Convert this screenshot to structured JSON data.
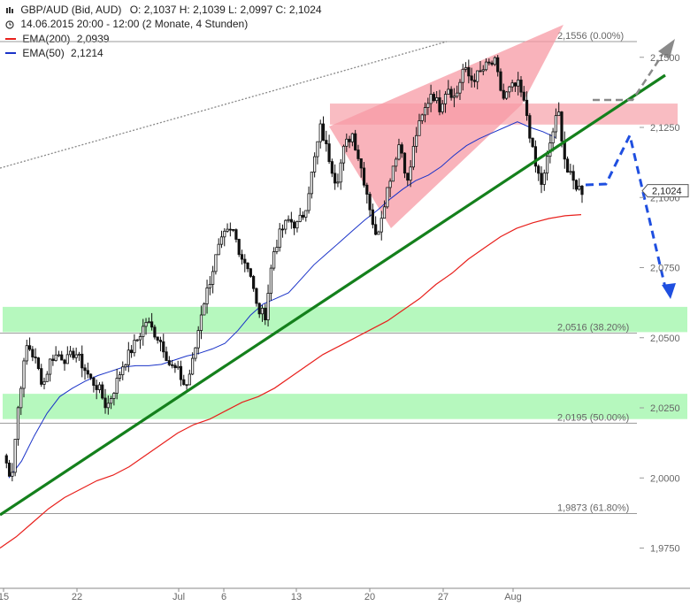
{
  "header": {
    "title": "GBP/AUD (Bid, AUD)",
    "ohlc": "O: 2,1037  H: 2,1039  L: 2,0997  C: 2,1024",
    "period": "14.06.2015 20:00 - 12:00 (2 Monate, 4 Stunden)",
    "ema200_label": "EMA(200)",
    "ema200_value": "2,0939",
    "ema50_label": "EMA(50)",
    "ema50_value": "2,1214"
  },
  "colors": {
    "ema200": "#e8201c",
    "ema50": "#1a33c8",
    "trendline": "#14801c",
    "forecast": "#1f4fe0",
    "forecast_alt": "#8a8a8a",
    "zone_green": "#9ef5a8",
    "zone_red": "#f7a0a8",
    "wedge": "#f79aa4",
    "candle": "#111111"
  },
  "chart_data": {
    "type": "candlestick",
    "y_ticks": [
      {
        "value": 2.15,
        "label": "2,1500"
      },
      {
        "value": 2.125,
        "label": "2,1250"
      },
      {
        "value": 2.1,
        "label": "2,1000"
      },
      {
        "value": 2.075,
        "label": "2,0750"
      },
      {
        "value": 2.05,
        "label": "2,0500"
      },
      {
        "value": 2.025,
        "label": "2,0250"
      },
      {
        "value": 2.0,
        "label": "2,0000"
      },
      {
        "value": 1.975,
        "label": "1,9750"
      }
    ],
    "x_ticks": [
      "15",
      "22",
      "Jul",
      "6",
      "13",
      "20",
      "27",
      "Aug"
    ],
    "fib_levels": [
      {
        "value": 2.1556,
        "label": "2,1556 (0.00%)"
      },
      {
        "value": 2.0516,
        "label": "2,0516 (38.20%)"
      },
      {
        "value": 2.0195,
        "label": "2,0195 (50.00%)"
      },
      {
        "value": 1.9873,
        "label": "1,9873 (61.80%)"
      }
    ],
    "current_price": {
      "value": 2.1024,
      "label": "2,1024"
    },
    "support_zones": [
      {
        "low": 2.052,
        "high": 2.061
      },
      {
        "low": 2.021,
        "high": 2.03
      }
    ],
    "resistance_zone": {
      "low": 2.126,
      "high": 2.1335
    },
    "close_path": [
      2.008,
      2.0,
      2.03,
      2.048,
      2.042,
      2.033,
      2.043,
      2.044,
      2.042,
      2.045,
      2.04,
      2.035,
      2.032,
      2.025,
      2.032,
      2.04,
      2.045,
      2.05,
      2.056,
      2.052,
      2.048,
      2.04,
      2.038,
      2.032,
      2.043,
      2.06,
      2.07,
      2.081,
      2.087,
      2.088,
      2.079,
      2.075,
      2.06,
      2.058,
      2.08,
      2.088,
      2.092,
      2.09,
      2.095,
      2.11,
      2.125,
      2.115,
      2.105,
      2.118,
      2.123,
      2.112,
      2.1,
      2.085,
      2.098,
      2.11,
      2.12,
      2.105,
      2.122,
      2.13,
      2.138,
      2.132,
      2.14,
      2.135,
      2.146,
      2.142,
      2.144,
      2.147,
      2.148,
      2.135,
      2.139,
      2.14,
      2.13,
      2.112,
      2.104,
      2.12,
      2.131,
      2.11,
      2.105,
      2.1024
    ],
    "ema50": [
      2.0,
      2.006,
      2.015,
      2.023,
      2.029,
      2.032,
      2.0345,
      2.0365,
      2.038,
      2.0395,
      2.04,
      2.04,
      2.0405,
      2.042,
      2.0435,
      2.0445,
      2.046,
      2.048,
      2.0525,
      2.058,
      2.062,
      2.064,
      2.066,
      2.071,
      2.076,
      2.08,
      2.084,
      2.088,
      2.092,
      2.0955,
      2.0995,
      2.103,
      2.106,
      2.108,
      2.111,
      2.115,
      2.1185,
      2.121,
      2.123,
      2.125,
      2.127,
      2.125,
      2.1235,
      2.1214
    ],
    "ema200": [
      1.975,
      1.979,
      1.984,
      1.989,
      1.993,
      1.996,
      1.999,
      2.001,
      2.004,
      2.008,
      2.012,
      2.016,
      2.019,
      2.021,
      2.024,
      2.027,
      2.029,
      2.032,
      2.036,
      2.04,
      2.044,
      2.047,
      2.05,
      2.053,
      2.056,
      2.06,
      2.064,
      2.069,
      2.073,
      2.078,
      2.082,
      2.086,
      2.089,
      2.091,
      2.0925,
      2.0935,
      2.0939
    ]
  }
}
